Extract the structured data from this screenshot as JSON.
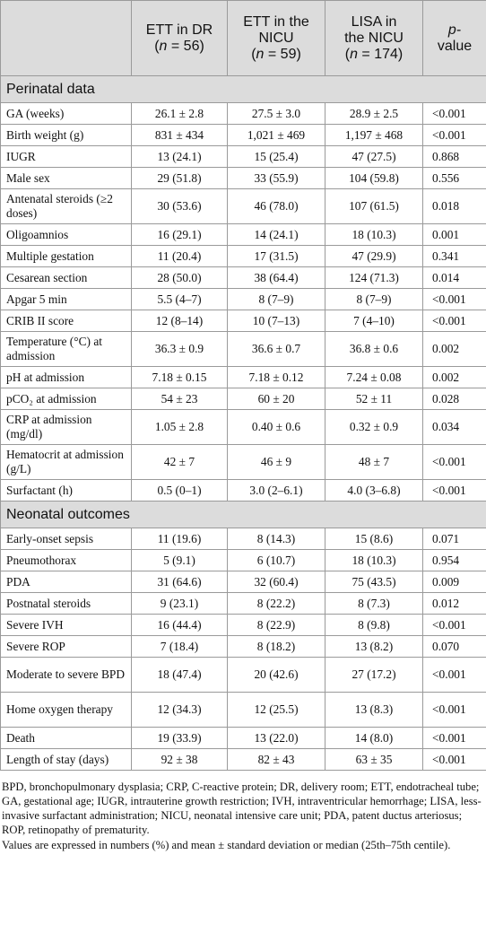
{
  "header": {
    "col1_line1": "ETT in DR",
    "col1_n": "n",
    "col1_count": " = 56)",
    "col2_line1": "ETT in the",
    "col2_line2": "NICU",
    "col2_n": "n",
    "col2_count": " = 59)",
    "col3_line1": "LISA in",
    "col3_line2": "the NICU",
    "col3_n": "n",
    "col3_count": " = 174)",
    "col4_line1": "p-",
    "col4_line2": "value"
  },
  "sections": [
    {
      "title": "Perinatal data",
      "rows": [
        {
          "label": "GA (weeks)",
          "v1": "26.1 ± 2.8",
          "v2": "27.5 ± 3.0",
          "v3": "28.9 ± 2.5",
          "p": "<0.001"
        },
        {
          "label": "Birth weight (g)",
          "v1": "831 ± 434",
          "v2": "1,021 ± 469",
          "v3": "1,197 ± 468",
          "p": "<0.001"
        },
        {
          "label": "IUGR",
          "v1": "13 (24.1)",
          "v2": "15 (25.4)",
          "v3": "47 (27.5)",
          "p": "0.868"
        },
        {
          "label": "Male sex",
          "v1": "29 (51.8)",
          "v2": "33 (55.9)",
          "v3": "104 (59.8)",
          "p": "0.556"
        },
        {
          "label": "Antenatal steroids (≥2 doses)",
          "v1": "30 (53.6)",
          "v2": "46 (78.0)",
          "v3": "107 (61.5)",
          "p": "0.018"
        },
        {
          "label": "Oligoamnios",
          "v1": "16 (29.1)",
          "v2": "14 (24.1)",
          "v3": "18 (10.3)",
          "p": "0.001"
        },
        {
          "label": "Multiple gestation",
          "v1": "11 (20.4)",
          "v2": "17 (31.5)",
          "v3": "47 (29.9)",
          "p": "0.341"
        },
        {
          "label": "Cesarean section",
          "v1": "28 (50.0)",
          "v2": "38 (64.4)",
          "v3": "124 (71.3)",
          "p": "0.014"
        },
        {
          "label": "Apgar 5 min",
          "v1": "5.5 (4–7)",
          "v2": "8 (7–9)",
          "v3": "8 (7–9)",
          "p": "<0.001"
        },
        {
          "label": "CRIB II score",
          "v1": "12 (8–14)",
          "v2": "10 (7–13)",
          "v3": "7 (4–10)",
          "p": "<0.001"
        },
        {
          "label": "Temperature (°C) at admission",
          "v1": "36.3 ± 0.9",
          "v2": "36.6 ± 0.7",
          "v3": "36.8 ± 0.6",
          "p": "0.002"
        },
        {
          "label": "pH at admission",
          "v1": "7.18 ± 0.15",
          "v2": "7.18 ± 0.12",
          "v3": "7.24 ± 0.08",
          "p": "0.002"
        },
        {
          "label": "pCO₂ at admission",
          "v1": "54 ± 23",
          "v2": "60 ± 20",
          "v3": "52 ± 11",
          "p": "0.028"
        },
        {
          "label": "CRP at admission (mg/dl)",
          "v1": "1.05 ± 2.8",
          "v2": "0.40 ± 0.6",
          "v3": "0.32 ± 0.9",
          "p": "0.034"
        },
        {
          "label": "Hematocrit at admission (g/L)",
          "v1": "42 ± 7",
          "v2": "46 ± 9",
          "v3": "48 ± 7",
          "p": "<0.001"
        },
        {
          "label": "Surfactant (h)",
          "v1": "0.5 (0–1)",
          "v2": "3.0 (2–6.1)",
          "v3": "4.0 (3–6.8)",
          "p": "<0.001"
        }
      ]
    },
    {
      "title": "Neonatal outcomes",
      "rows": [
        {
          "label": "Early-onset sepsis",
          "v1": "11 (19.6)",
          "v2": "8 (14.3)",
          "v3": "15 (8.6)",
          "p": "0.071"
        },
        {
          "label": "Pneumothorax",
          "v1": "5 (9.1)",
          "v2": "6 (10.7)",
          "v3": "18 (10.3)",
          "p": "0.954"
        },
        {
          "label": "PDA",
          "v1": "31 (64.6)",
          "v2": "32 (60.4)",
          "v3": "75 (43.5)",
          "p": "0.009"
        },
        {
          "label": "Postnatal steroids",
          "v1": "9 (23.1)",
          "v2": "8 (22.2)",
          "v3": "8 (7.3)",
          "p": "0.012"
        },
        {
          "label": "Severe IVH",
          "v1": "16 (44.4)",
          "v2": "8 (22.9)",
          "v3": "8 (9.8)",
          "p": "<0.001"
        },
        {
          "label": "Severe ROP",
          "v1": "7 (18.4)",
          "v2": "8 (18.2)",
          "v3": "13 (8.2)",
          "p": "0.070"
        },
        {
          "label": "Moderate to severe BPD",
          "v1": "18 (47.4)",
          "v2": "20 (42.6)",
          "v3": "27 (17.2)",
          "p": "<0.001"
        },
        {
          "label": "Home oxygen therapy",
          "v1": "12 (34.3)",
          "v2": "12 (25.5)",
          "v3": "13 (8.3)",
          "p": "<0.001"
        },
        {
          "label": "Death",
          "v1": "19 (33.9)",
          "v2": "13 (22.0)",
          "v3": "14 (8.0)",
          "p": "<0.001"
        },
        {
          "label": "Length of stay (days)",
          "v1": "92 ± 38",
          "v2": "82 ± 43",
          "v3": "63 ± 35",
          "p": "<0.001"
        }
      ]
    }
  ],
  "footnotes": [
    "BPD, bronchopulmonary dysplasia; CRP, C-reactive protein; DR, delivery room; ETT, endotracheal tube; GA, gestational age; IUGR, intrauterine growth restriction; IVH, intraventricular hemorrhage; LISA, less-invasive surfactant administration; NICU, neonatal intensive care unit; PDA, patent ductus arteriosus; ROP, retinopathy of prematurity.",
    "Values are expressed in numbers (%) and mean ± standard deviation or median (25th–75th centile)."
  ]
}
